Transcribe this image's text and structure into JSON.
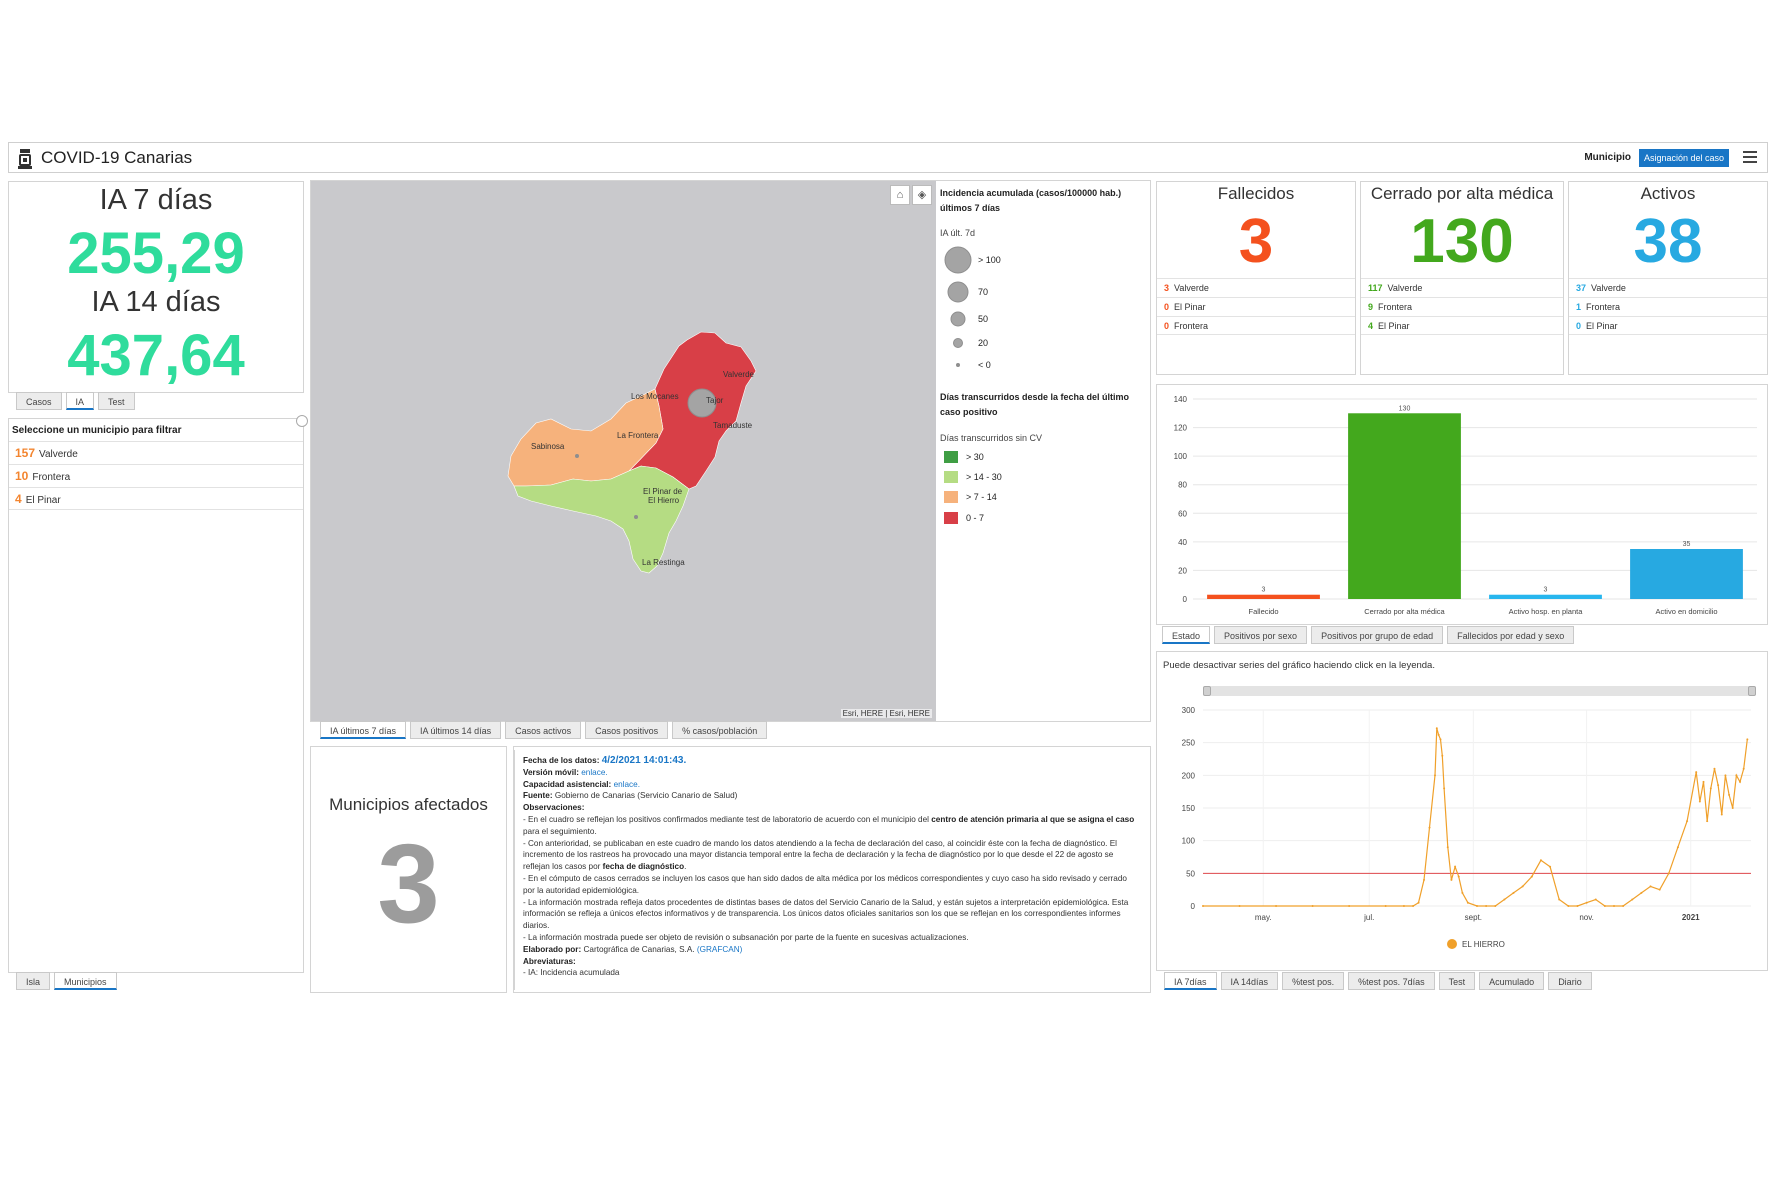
{
  "header": {
    "title": "COVID-19 Canarias",
    "municipio_label": "Municipio",
    "asignacion_button": "Asignación del caso"
  },
  "ia_panel": {
    "ia7_label": "IA 7 días",
    "ia7_value": "255,29",
    "ia14_label": "IA 14 días",
    "ia14_value": "437,64",
    "tabs": [
      "Casos",
      "IA",
      "Test"
    ],
    "active_tab": "IA"
  },
  "municipios_list": {
    "heading": "Seleccione un municipio para filtrar",
    "rows": [
      {
        "count": "157",
        "name": "Valverde"
      },
      {
        "count": "10",
        "name": "Frontera"
      },
      {
        "count": "4",
        "name": "El Pinar"
      }
    ],
    "tabs": [
      "Isla",
      "Municipios"
    ],
    "active_tab": "Municipios"
  },
  "map": {
    "labels": [
      "Valverde",
      "Los Mocanes",
      "Tajor",
      "Tiñor",
      "Tamaduste",
      "La Frontera",
      "Sabinosa",
      "El Pinar de El Hierro",
      "La Restinga"
    ],
    "label_lines": {
      "tiny_pinar_1": "El Pinar de",
      "tiny_pinar_2": "El Hierro"
    },
    "attribution": "Esri, HERE | Esri, HERE",
    "home_icon": "home-icon",
    "layers_icon": "layers-icon",
    "tabs": [
      "IA últimos 7 días",
      "IA últimos 14 días",
      "Casos activos",
      "Casos positivos",
      "% casos/población"
    ],
    "active_tab": "IA últimos 7 días",
    "region_colors": {
      "red": "#d83f47",
      "orange": "#f6b27c",
      "green": "#b5dc83"
    }
  },
  "legend": {
    "title": "Incidencia acumulada (casos/100000 hab.) últimos 7 días",
    "sub1": "IA últ. 7d",
    "circles": [
      "> 100",
      "70",
      "50",
      "20",
      "< 0"
    ],
    "title2": "Días transcurridos desde la fecha del último caso positivo",
    "sub2": "Días transcurridos sin CV",
    "ranges": [
      {
        "label": "> 30",
        "color": "#3f9e44"
      },
      {
        "label": "> 14 - 30",
        "color": "#b5dc83"
      },
      {
        "label": "> 7 - 14",
        "color": "#f6b27c"
      },
      {
        "label": "0 - 7",
        "color": "#d83f47"
      }
    ]
  },
  "municipios_afectados": {
    "label": "Municipios afectados",
    "value": "3"
  },
  "info": {
    "fecha_label": "Fecha de los datos:",
    "fecha_value": "4/2/2021 14:01:43.",
    "version_label": "Versión móvil:",
    "version_link": "enlace.",
    "capacidad_label": "Capacidad asistencial:",
    "capacidad_link": "enlace.",
    "fuente_label": "Fuente:",
    "fuente_value": "Gobierno de Canarias (Servicio Canario de Salud)",
    "observaciones_label": "Observaciones:",
    "obs1_a": "- En el cuadro se reflejan los positivos confirmados mediante test de laboratorio de acuerdo con el municipio del",
    "obs1_b": "centro de atención primaria al que se asigna el caso",
    "obs1_c": "para el seguimiento.",
    "obs2_a": "- Con anterioridad, se publicaban en este cuadro de mando los datos atendiendo a la fecha de declaración del caso, al coincidir éste con la fecha de diagnóstico. El incremento de los rastreos ha provocado una mayor distancia temporal entre la fecha de declaración y la fecha de diagnóstico por lo que desde el 22 de agosto se reflejan los casos por",
    "obs2_b": "fecha de diagnóstico",
    "obs3": "- En el cómputo de casos cerrados se incluyen los casos que han sido dados de alta médica por los médicos correspondientes y cuyo caso ha sido revisado y cerrado por la autoridad epidemiológica.",
    "obs4": "- La información mostrada refleja datos procedentes de distintas bases de datos del Servicio Canario de la Salud, y están sujetos a interpretación epidemiológica. Esta información se refleja a únicos efectos informativos y de transparencia. Los únicos datos oficiales sanitarios son los que se reflejan en los correspondientes informes diarios.",
    "obs5": "- La información mostrada puede ser objeto de revisión o subsanación por parte de la fuente en sucesivas actualizaciones.",
    "elaborado_label": "Elaborado por:",
    "elaborado_value": "Cartográfica de Canarias, S.A.",
    "elaborado_link": "(GRAFCAN)",
    "abrev_label": "Abreviaturas:",
    "abrev_value": "- IA: Incidencia acumulada"
  },
  "cards": [
    {
      "title": "Fallecidos",
      "value": "3",
      "color": "#f4511e",
      "rows": [
        {
          "n": "3",
          "name": "Valverde"
        },
        {
          "n": "0",
          "name": "El Pinar"
        },
        {
          "n": "0",
          "name": "Frontera"
        }
      ]
    },
    {
      "title": "Cerrado por alta médica",
      "value": "130",
      "color": "#43a81d",
      "rows": [
        {
          "n": "117",
          "name": "Valverde"
        },
        {
          "n": "9",
          "name": "Frontera"
        },
        {
          "n": "4",
          "name": "El Pinar"
        }
      ]
    },
    {
      "title": "Activos",
      "value": "38",
      "color": "#27a9e1",
      "rows": [
        {
          "n": "37",
          "name": "Valverde"
        },
        {
          "n": "1",
          "name": "Frontera"
        },
        {
          "n": "0",
          "name": "El Pinar"
        }
      ]
    }
  ],
  "chart_data": [
    {
      "type": "bar",
      "categories": [
        "Fallecido",
        "Cerrado por alta médica",
        "Activo hosp. en planta",
        "Activo en domicilio"
      ],
      "values": [
        3,
        130,
        3,
        35
      ],
      "colors": [
        "#f4511e",
        "#43a81d",
        "#27b6ee",
        "#27a9e1"
      ],
      "ylim": [
        0,
        140
      ],
      "yticks": [
        0,
        20,
        40,
        60,
        80,
        100,
        120,
        140
      ],
      "grid": true,
      "tabs": [
        "Estado",
        "Positivos por sexo",
        "Positivos por grupo de edad",
        "Fallecidos por edad y sexo"
      ],
      "active_tab": "Estado"
    },
    {
      "type": "line",
      "note": "Puede desactivar series del gráfico haciendo click en la leyenda.",
      "xticks": [
        "may.",
        "jul.",
        "sept.",
        "nov.",
        "2021"
      ],
      "ylim": [
        0,
        300
      ],
      "yticks": [
        0,
        50,
        100,
        150,
        200,
        250,
        300
      ],
      "threshold": 50,
      "threshold_color": "#e0494d",
      "series": [
        {
          "name": "EL HIERRO",
          "color": "#f0a02a",
          "x": [
            0,
            20,
            40,
            60,
            80,
            100,
            110,
            115,
            118,
            121,
            124,
            127,
            128,
            129,
            130,
            131,
            132,
            134,
            136,
            138,
            140,
            142,
            145,
            150,
            155,
            160,
            165,
            170,
            175,
            180,
            185,
            190,
            195,
            200,
            205,
            210,
            215,
            220,
            225,
            230,
            235,
            240,
            245,
            250,
            255,
            260,
            265,
            270,
            272,
            274,
            276,
            278,
            280,
            282,
            284,
            286,
            288,
            290,
            292,
            294,
            296,
            298
          ],
          "values": [
            0,
            0,
            0,
            0,
            0,
            0,
            0,
            0,
            5,
            40,
            120,
            200,
            272,
            262,
            255,
            230,
            180,
            90,
            40,
            60,
            45,
            20,
            5,
            0,
            0,
            0,
            10,
            20,
            30,
            45,
            70,
            60,
            10,
            0,
            0,
            5,
            10,
            0,
            0,
            0,
            10,
            20,
            30,
            25,
            50,
            90,
            130,
            205,
            160,
            190,
            130,
            180,
            210,
            185,
            140,
            200,
            170,
            150,
            200,
            190,
            210,
            255
          ],
          "xmax": 300
        }
      ],
      "legend": "bottom-center",
      "tabs": [
        "IA 7días",
        "IA 14días",
        "%test pos.",
        "%test pos. 7días",
        "Test",
        "Acumulado",
        "Diario"
      ],
      "active_tab": "IA 7días"
    }
  ]
}
